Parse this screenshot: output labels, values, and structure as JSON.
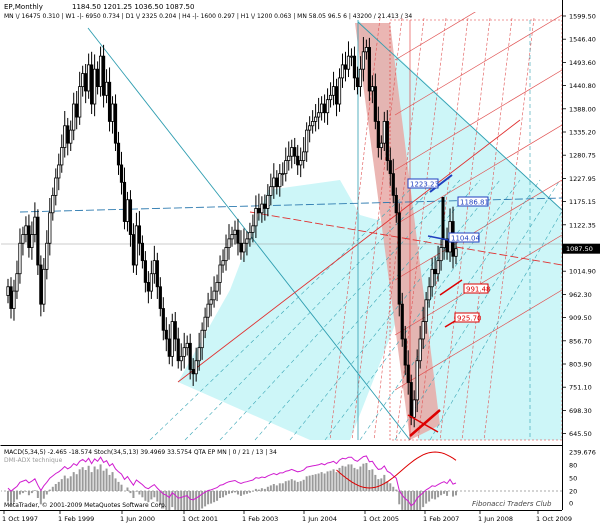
{
  "header": {
    "symbol": "EP,Monthly",
    "ohlc": "1184.50  1201.25  1036.50  1087.50",
    "mtf": "MN  \\/  16475   0.310   |   W1  -|-  6950   0.734   |   D1  \\/  2325   0.204   |   H4  -|-  1600   0.297   |   H1  \\/  1200   0.063   |   MN   58.05  96.5 6   |   43200  /  21.413 / 34"
  },
  "lower_panel": {
    "title": "MACD(5,34,5) -2.465 -18.574  Stoch(34,5,13) 39.4969 33.5754  QTA EP MN  | 0 / 21 / 13 | 34",
    "subtitle": "DMI-ADX technique",
    "copyright": "MetaTrader, © 2001-2009 MetaQuotes Software Corp.",
    "watermark": "Fibonacci Traders Club"
  },
  "price_axis": {
    "ticks": [
      "1599.50",
      "1546.40",
      "1493.60",
      "1440.80",
      "1388.00",
      "1335.20",
      "1280.75",
      "1227.95",
      "1175.15",
      "1122.35",
      "1069.55",
      "1014.90",
      "962.30",
      "909.50",
      "856.70",
      "803.90",
      "751.10",
      "698.30",
      "645.50"
    ],
    "current": "1087.50"
  },
  "indicator_axis": {
    "ticks": [
      "239.676",
      "80",
      "50",
      "20",
      "0"
    ]
  },
  "time_axis": {
    "ticks": [
      "1 Oct 1997",
      "1 Feb 1999",
      "1 Jun 2000",
      "1 Oct 2001",
      "1 Feb 2003",
      "1 Jun 2004",
      "1 Oct 2005",
      "1 Feb 2007",
      "1 Jun 2008",
      "1 Oct 2009"
    ]
  },
  "price_labels": [
    {
      "text": "1223.23",
      "color": "#1f3fbf"
    },
    {
      "text": "1186.81",
      "color": "#1f3fbf"
    },
    {
      "text": "1104.04",
      "color": "#1f3fbf"
    },
    {
      "text": "991.48",
      "color": "#dd0000"
    },
    {
      "text": "925.70",
      "color": "#dd0000"
    }
  ],
  "chart_data": {
    "type": "candlestick",
    "title": "EP,Monthly",
    "timeframe": "Monthly",
    "ylim": [
      645.5,
      1620
    ],
    "x_start": "1997-10",
    "x_end": "2010-04",
    "closes": [
      1000,
      950,
      990,
      1030,
      1100,
      1120,
      1140,
      1090,
      1120,
      1160,
      1050,
      960,
      1040,
      1100,
      1170,
      1210,
      1250,
      1280,
      1320,
      1370,
      1330,
      1360,
      1420,
      1390,
      1460,
      1490,
      1450,
      1510,
      1420,
      1500,
      1460,
      1530,
      1440,
      1470,
      1380,
      1420,
      1330,
      1280,
      1240,
      1150,
      1200,
      1120,
      1050,
      1140,
      1100,
      1060,
      1010,
      990,
      1030,
      1060,
      1000,
      950,
      900,
      880,
      840,
      920,
      880,
      830,
      840,
      860,
      870,
      810,
      800,
      830,
      860,
      900,
      930,
      960,
      970,
      990,
      1010,
      1050,
      1060,
      1090,
      1110,
      1120,
      1130,
      1100,
      1080,
      1100,
      1110,
      1125,
      1140,
      1180,
      1170,
      1190,
      1180,
      1210,
      1230,
      1250,
      1230,
      1260,
      1260,
      1290,
      1300,
      1320,
      1300,
      1280,
      1290,
      1310,
      1360,
      1370,
      1380,
      1390,
      1400,
      1420,
      1400,
      1430,
      1440,
      1460,
      1420,
      1480,
      1510,
      1500,
      1530,
      1530,
      1480,
      1460,
      1500,
      1540,
      1550,
      1450,
      1460,
      1380,
      1320,
      1330,
      1380,
      1290,
      1260,
      1210,
      1170,
      960,
      880,
      820,
      780,
      700,
      740,
      830,
      880,
      920,
      970,
      1000,
      1040,
      1030,
      1060,
      1090,
      1110,
      1080,
      1150,
      1070,
      1087.5
    ],
    "indicator": {
      "name": "MACD(5,34,5) / Stoch(34,5,13)",
      "macd_value": -2.465,
      "macd_signal": -18.574,
      "stoch_k": 39.4969,
      "stoch_d": 33.5754
    }
  }
}
